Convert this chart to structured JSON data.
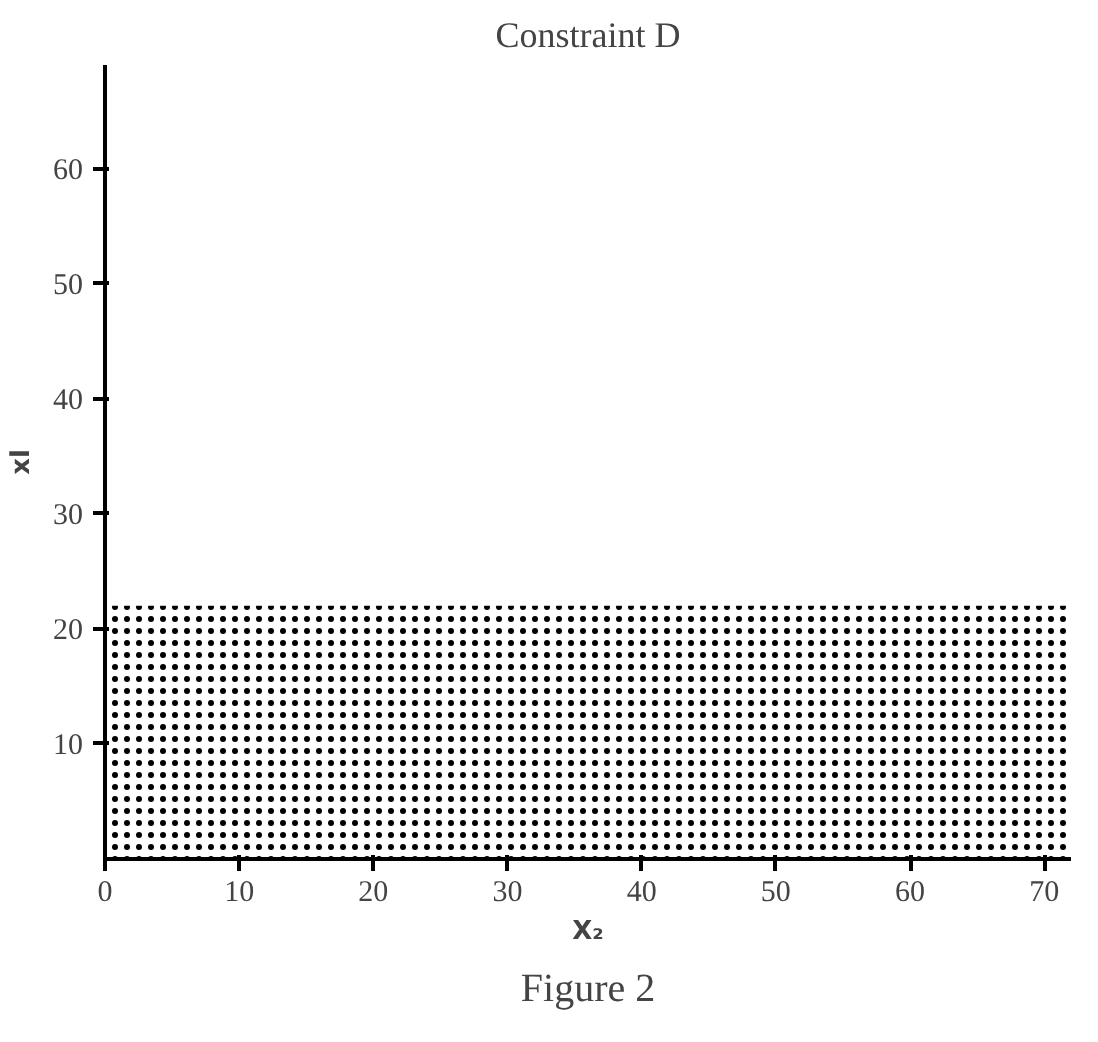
{
  "chart_data": {
    "type": "area",
    "title": "Constraint D",
    "xlabel": "X₂",
    "ylabel": "xl",
    "x": [
      0,
      72
    ],
    "values": [
      22,
      22
    ],
    "color": "#000000",
    "xlim": [
      0,
      72
    ],
    "ylim": [
      0,
      69
    ],
    "xticks": [
      0,
      10,
      20,
      30,
      40,
      50,
      60,
      70
    ],
    "yticks": [
      10,
      20,
      30,
      40,
      50,
      60
    ],
    "grid": false,
    "annotations": [
      "Figure 2"
    ]
  }
}
